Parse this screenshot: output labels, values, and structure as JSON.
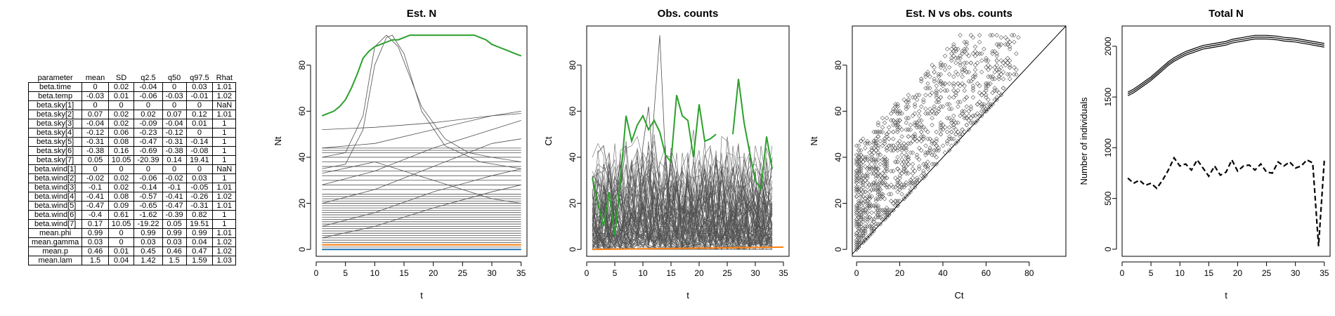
{
  "table": {
    "headers": [
      "parameter",
      "mean",
      "SD",
      "q2.5",
      "q50",
      "q97.5",
      "Rhat"
    ],
    "rows": [
      [
        "beta.time",
        "0",
        "0.02",
        "-0.04",
        "0",
        "0.03",
        "1.01"
      ],
      [
        "beta.temp",
        "-0.03",
        "0.01",
        "-0.06",
        "-0.03",
        "-0.01",
        "1.02"
      ],
      [
        "beta.sky[1]",
        "0",
        "0",
        "0",
        "0",
        "0",
        "NaN"
      ],
      [
        "beta.sky[2]",
        "0.07",
        "0.02",
        "0.02",
        "0.07",
        "0.12",
        "1.01"
      ],
      [
        "beta.sky[3]",
        "-0.04",
        "0.02",
        "-0.09",
        "-0.04",
        "0.01",
        "1"
      ],
      [
        "beta.sky[4]",
        "-0.12",
        "0.06",
        "-0.23",
        "-0.12",
        "0",
        "1"
      ],
      [
        "beta.sky[5]",
        "-0.31",
        "0.08",
        "-0.47",
        "-0.31",
        "-0.14",
        "1"
      ],
      [
        "beta.sky[6]",
        "-0.38",
        "0.16",
        "-0.69",
        "-0.38",
        "-0.08",
        "1"
      ],
      [
        "beta.sky[7]",
        "0.05",
        "10.05",
        "-20.39",
        "0.14",
        "19.41",
        "1"
      ],
      [
        "beta.wind[1]",
        "0",
        "0",
        "0",
        "0",
        "0",
        "NaN"
      ],
      [
        "beta.wind[2]",
        "-0.02",
        "0.02",
        "-0.06",
        "-0.02",
        "0.03",
        "1"
      ],
      [
        "beta.wind[3]",
        "-0.1",
        "0.02",
        "-0.14",
        "-0.1",
        "-0.05",
        "1.01"
      ],
      [
        "beta.wind[4]",
        "-0.41",
        "0.08",
        "-0.57",
        "-0.41",
        "-0.26",
        "1.02"
      ],
      [
        "beta.wind[5]",
        "-0.47",
        "0.09",
        "-0.65",
        "-0.47",
        "-0.31",
        "1.01"
      ],
      [
        "beta.wind[6]",
        "-0.4",
        "0.61",
        "-1.62",
        "-0.39",
        "0.82",
        "1"
      ],
      [
        "beta.wind[7]",
        "0.17",
        "10.05",
        "-19.22",
        "0.05",
        "19.51",
        "1"
      ],
      [
        "mean.phi",
        "0.99",
        "0",
        "0.99",
        "0.99",
        "0.99",
        "1.01"
      ],
      [
        "mean.gamma",
        "0.03",
        "0",
        "0.03",
        "0.03",
        "0.04",
        "1.02"
      ],
      [
        "mean.p",
        "0.46",
        "0.01",
        "0.45",
        "0.46",
        "0.47",
        "1.02"
      ],
      [
        "mean.lam",
        "1.5",
        "0.04",
        "1.42",
        "1.5",
        "1.59",
        "1.03"
      ]
    ]
  },
  "chart_data": [
    {
      "type": "line",
      "title": "Est. N",
      "xlabel": "t",
      "ylabel": "Nt",
      "xlim": [
        0,
        36
      ],
      "ylim": [
        -3,
        97
      ],
      "xticks": [
        0,
        5,
        10,
        15,
        20,
        25,
        30,
        35
      ],
      "yticks": [
        0,
        20,
        40,
        60,
        80
      ],
      "background_lines": {
        "color": "#505050",
        "x": [
          1,
          35
        ],
        "flat_levels": [
          0,
          1,
          2,
          3,
          4,
          5,
          6,
          7,
          8,
          9,
          10,
          11,
          12,
          13,
          14,
          15,
          16,
          17,
          18,
          19,
          20,
          21,
          22,
          23,
          24,
          26,
          28,
          30,
          32,
          34,
          36,
          38,
          40,
          42,
          43,
          44
        ],
        "curves": [
          {
            "x": [
              1,
              5,
              8,
              10,
              12,
              14,
              18,
              22,
              26,
              30,
              35
            ],
            "y": [
              40,
              42,
              58,
              88,
              93,
              88,
              62,
              48,
              42,
              40,
              38
            ]
          },
          {
            "x": [
              1,
              5,
              8,
              10,
              12,
              13,
              15,
              18,
              22,
              28,
              35
            ],
            "y": [
              35,
              37,
              52,
              80,
              92,
              93,
              85,
              60,
              45,
              38,
              35
            ]
          },
          {
            "x": [
              1,
              10,
              20,
              30,
              35
            ],
            "y": [
              52,
              53,
              55,
              58,
              59
            ]
          },
          {
            "x": [
              1,
              10,
              20,
              30,
              35
            ],
            "y": [
              44,
              46,
              52,
              58,
              60
            ]
          },
          {
            "x": [
              1,
              10,
              20,
              30,
              35
            ],
            "y": [
              28,
              34,
              44,
              52,
              56
            ]
          },
          {
            "x": [
              1,
              10,
              20,
              30,
              35
            ],
            "y": [
              20,
              26,
              36,
              46,
              48
            ]
          },
          {
            "x": [
              1,
              10,
              20,
              30,
              35
            ],
            "y": [
              33,
              38,
              30,
              22,
              20
            ]
          },
          {
            "x": [
              1,
              10,
              20,
              30,
              35
            ],
            "y": [
              10,
              16,
              25,
              32,
              35
            ]
          },
          {
            "x": [
              1,
              10,
              20,
              30,
              35
            ],
            "y": [
              5,
              10,
              18,
              25,
              28
            ]
          }
        ]
      },
      "series": [
        {
          "name": "",
          "color": "#2ca02c",
          "x": [
            1,
            2,
            3,
            4,
            5,
            6,
            7,
            8,
            9,
            10,
            11,
            12,
            13,
            14,
            15,
            16,
            17,
            18,
            19,
            20,
            21,
            22,
            23,
            24,
            25,
            26,
            27,
            28,
            29,
            30,
            31,
            32,
            33,
            34,
            35
          ],
          "y": [
            58,
            59,
            60,
            62,
            65,
            70,
            76,
            83,
            86,
            88,
            89,
            90,
            91,
            91,
            92,
            93,
            93,
            93,
            93,
            93,
            93,
            93,
            93,
            93,
            93,
            93,
            93,
            92,
            91,
            89,
            88,
            87,
            86,
            85,
            84
          ]
        },
        {
          "name": "",
          "color": "#ff7f0e",
          "x": [
            1,
            35
          ],
          "y": [
            2,
            2
          ]
        },
        {
          "name": "",
          "color": "#1f77b4",
          "x": [
            1,
            35
          ],
          "y": [
            0,
            0
          ]
        }
      ]
    },
    {
      "type": "line",
      "title": "Obs. counts",
      "xlabel": "t",
      "ylabel": "Ct",
      "xlim": [
        0,
        36
      ],
      "ylim": [
        -3,
        97
      ],
      "xticks": [
        0,
        5,
        10,
        15,
        20,
        25,
        30,
        35
      ],
      "yticks": [
        0,
        20,
        40,
        60,
        80
      ],
      "background_lines": {
        "color": "#505050",
        "count": 85,
        "x_range": [
          1,
          33
        ],
        "typical_max": 45
      },
      "background_peaks": [
        {
          "x": [
            11,
            12,
            13,
            14,
            15
          ],
          "y": [
            20,
            60,
            93,
            40,
            15
          ]
        },
        {
          "x": [
            9,
            10,
            11,
            12,
            13
          ],
          "y": [
            10,
            45,
            62,
            30,
            12
          ]
        },
        {
          "x": [
            2,
            3,
            4,
            5
          ],
          "y": [
            42,
            45,
            30,
            20
          ]
        }
      ],
      "series": [
        {
          "name": "",
          "color": "#2ca02c",
          "x": [
            1,
            2,
            3,
            4,
            5,
            6,
            7,
            8,
            9,
            10,
            11,
            12,
            13,
            14,
            15,
            16,
            17,
            18,
            19,
            20,
            21,
            22,
            23,
            null,
            26,
            27,
            28,
            29,
            30,
            31,
            32,
            33
          ],
          "y": [
            31,
            20,
            10,
            25,
            6,
            30,
            58,
            47,
            54,
            58,
            52,
            56,
            51,
            41,
            38,
            67,
            58,
            56,
            40,
            63,
            47,
            48,
            50,
            null,
            50,
            74,
            55,
            42,
            30,
            26,
            49,
            35
          ]
        },
        {
          "name": "",
          "color": "#ff7f0e",
          "x": [
            1,
            35
          ],
          "y": [
            0,
            1
          ]
        }
      ]
    },
    {
      "type": "scatter",
      "title": "Est. N vs obs. counts",
      "xlabel": "Ct",
      "ylabel": "Nt",
      "xlim": [
        -2,
        97
      ],
      "ylim": [
        -3,
        97
      ],
      "xticks": [
        0,
        20,
        40,
        60,
        80
      ],
      "yticks": [
        0,
        20,
        40,
        60,
        80
      ],
      "reference_line": "y = x",
      "marker": "open diamond",
      "point_cloud": {
        "count": 1100,
        "ct_range": [
          0,
          75
        ],
        "nt_range": [
          0,
          93
        ]
      }
    },
    {
      "type": "line",
      "title": "Total N",
      "xlabel": "t",
      "ylabel": "Number of individuals",
      "xlim": [
        0,
        36
      ],
      "ylim": [
        -70,
        2200
      ],
      "xticks": [
        0,
        5,
        10,
        15,
        20,
        25,
        30,
        35
      ],
      "yticks": [
        0,
        500,
        1000,
        1500,
        2000
      ],
      "series": [
        {
          "name": "",
          "style": "solid",
          "x": [
            1,
            2,
            3,
            4,
            5,
            6,
            7,
            8,
            9,
            10,
            11,
            12,
            13,
            14,
            15,
            16,
            17,
            18,
            19,
            20,
            21,
            22,
            23,
            24,
            25,
            26,
            27,
            28,
            29,
            30,
            31,
            32,
            33,
            34,
            35
          ],
          "y": [
            1530,
            1560,
            1600,
            1640,
            1680,
            1730,
            1780,
            1830,
            1870,
            1900,
            1930,
            1950,
            1970,
            1990,
            2000,
            2010,
            2020,
            2030,
            2050,
            2060,
            2070,
            2080,
            2090,
            2090,
            2090,
            2085,
            2080,
            2070,
            2065,
            2060,
            2050,
            2040,
            2030,
            2020,
            2010
          ]
        },
        {
          "name": "",
          "style": "dashed",
          "x": [
            1,
            2,
            3,
            4,
            5,
            6,
            7,
            8,
            9,
            10,
            11,
            12,
            13,
            14,
            15,
            16,
            17,
            18,
            19,
            20,
            21,
            22,
            23,
            24,
            25,
            26,
            27,
            28,
            29,
            30,
            31,
            32,
            33,
            34,
            35
          ],
          "y": [
            700,
            650,
            680,
            630,
            650,
            600,
            680,
            780,
            900,
            820,
            840,
            780,
            880,
            800,
            720,
            820,
            730,
            760,
            880,
            770,
            820,
            830,
            780,
            840,
            760,
            750,
            860,
            820,
            860,
            800,
            820,
            880,
            850,
            30,
            880
          ]
        }
      ]
    }
  ]
}
